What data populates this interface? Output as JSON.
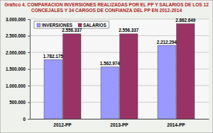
{
  "chart_data": {
    "type": "bar",
    "title": "Gráfico 4. COMPARACION INVERSIONES REALIZADAS POR EL PP Y SALARIOS DE LOS 12 CONCEJALES Y 34 CARGOS DE CONFIANZA DEL PP EN 2012-2014",
    "categories": [
      "2012-PP",
      "2013-PP",
      "2014-PP"
    ],
    "series": [
      {
        "name": "INVERSIONES",
        "color": "#9999ff",
        "values": [
          1782175,
          1562974,
          2212294
        ],
        "value_labels": [
          "1.782.175",
          "1.562.974",
          "2.212.294"
        ]
      },
      {
        "name": "SALARIOS",
        "color": "#993366",
        "values": [
          2556337,
          2556337,
          2862649
        ],
        "value_labels": [
          "2.556.337",
          "2.556.337",
          "2.862.649"
        ]
      }
    ],
    "ylim": [
      0,
      3000000
    ],
    "yticks": [
      0,
      {
        "value": 500000,
        "label": "500.000"
      },
      {
        "value": 1000000,
        "label": "1.000.000"
      },
      {
        "value": 1500000,
        "label": "1.500.000"
      },
      {
        "value": 2000000,
        "label": "2.000.000"
      },
      {
        "value": 2500000,
        "label": "2.500.000"
      },
      {
        "value": 3000000,
        "label": "3.000.000"
      }
    ],
    "grid": true,
    "legend": "top-left",
    "data_labels": true
  }
}
